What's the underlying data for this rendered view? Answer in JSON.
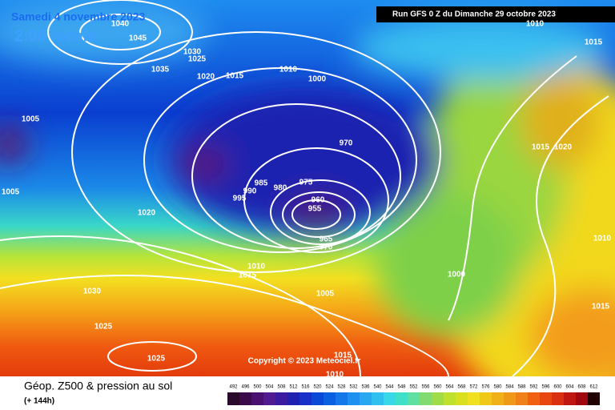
{
  "header": {
    "date": "Samedi 4 novembre 2023",
    "time": "2:00 locale",
    "run": "Run GFS 0 Z du Dimanche 29 octobre 2023"
  },
  "isobar_labels": [
    1040,
    1045,
    1030,
    1025,
    1035,
    1020,
    1015,
    1010,
    1000,
    1005,
    970,
    1015,
    1020,
    1005,
    985,
    990,
    980,
    975,
    995,
    960,
    955,
    1020,
    965,
    970,
    1010,
    1010,
    1015,
    1000,
    1030,
    1005,
    1015,
    1025,
    1025,
    1015,
    1010,
    1010,
    1015
  ],
  "copyright": "Copyright © 2023 Meteociel.fr",
  "footer": {
    "title": "Géop. Z500 & pression au sol",
    "lead": "(+ 144h)"
  },
  "scale": {
    "values": [
      492,
      496,
      500,
      504,
      508,
      512,
      516,
      520,
      524,
      528,
      532,
      536,
      540,
      544,
      548,
      552,
      556,
      560,
      564,
      568,
      572,
      576,
      580,
      584,
      588,
      592,
      596,
      600,
      604,
      608,
      612
    ]
  }
}
